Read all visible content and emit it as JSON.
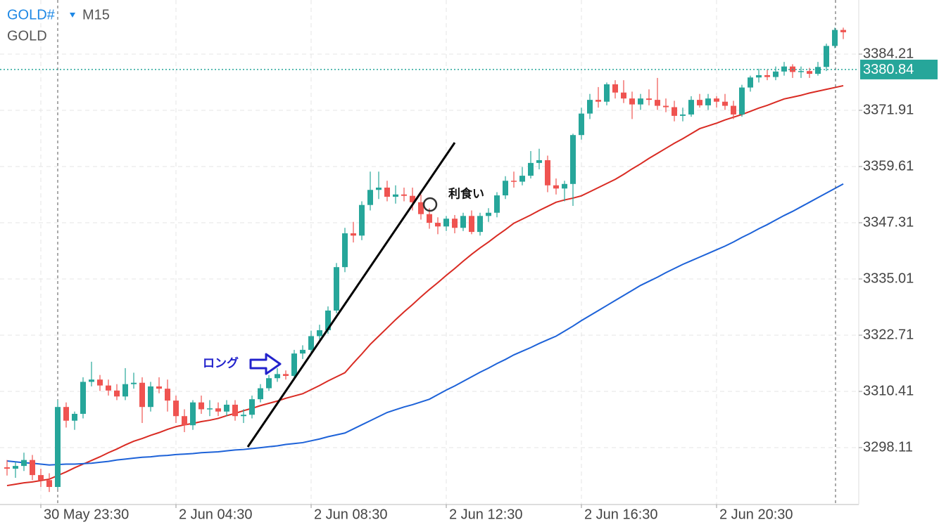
{
  "header": {
    "symbol": "GOLD#",
    "timeframe": "M15",
    "description": "GOLD"
  },
  "annotations": {
    "take_profit": "利食い",
    "long": "ロング"
  },
  "chart_data": {
    "type": "candlestick",
    "up_color": "#26a69a",
    "down_color": "#ef5350",
    "categories": [
      null,
      null,
      null,
      null,
      "30 May 23:30",
      null,
      null,
      null,
      null,
      null,
      null,
      null,
      null,
      null,
      null,
      null,
      null,
      null,
      null,
      null,
      "2 Jun 04:30",
      null,
      null,
      null,
      null,
      null,
      null,
      null,
      null,
      null,
      null,
      null,
      null,
      null,
      null,
      null,
      "2 Jun 08:30",
      null,
      null,
      null,
      null,
      null,
      null,
      null,
      null,
      null,
      null,
      null,
      null,
      null,
      null,
      null,
      "2 Jun 12:30",
      null,
      null,
      null,
      null,
      null,
      null,
      null,
      null,
      null,
      null,
      null,
      null,
      null,
      null,
      null,
      "2 Jun 16:30",
      null,
      null,
      null,
      null,
      null,
      null,
      null,
      null,
      null,
      null,
      null,
      null,
      null,
      null,
      null,
      "2 Jun 20:30",
      null,
      null,
      null,
      null,
      null,
      null,
      null,
      null,
      null,
      null,
      null,
      null,
      null,
      null,
      null
    ],
    "open": [
      3293.8,
      3293.5,
      3294.1,
      3295.4,
      3292.1,
      3291.0,
      3289.5,
      3307.0,
      3304.0,
      3305.5,
      3312.5,
      3313.0,
      3311.7,
      3310.6,
      3309.3,
      3312.0,
      3312.3,
      3307.0,
      3311.5,
      3311.0,
      3308.4,
      3305.0,
      3303.0,
      3308.0,
      3306.5,
      3306.7,
      3306.0,
      3307.5,
      3305.0,
      3305.3,
      3308.7,
      3311.1,
      3313.3,
      3314.2,
      3313.8,
      3318.7,
      3319.5,
      3322.5,
      3323.8,
      3328.1,
      3337.6,
      3345.0,
      3344.5,
      3351.2,
      3354.5,
      3355.0,
      3353.0,
      3353.5,
      3353.2,
      3351.8,
      3349.2,
      3347.3,
      3346.5,
      3348.2,
      3346.2,
      3348.8,
      3345.3,
      3348.8,
      3349.5,
      3353.3,
      3356.5,
      3356.3,
      3357.6,
      3360.4,
      3361.0,
      3355.5,
      3354.8,
      3355.8,
      3366.5,
      3371.2,
      3374.2,
      3373.8,
      3377.6,
      3375.8,
      3374.5,
      3373.2,
      3374.5,
      3374.2,
      3372.9,
      3372.6,
      3370.7,
      3371.0,
      3374.2,
      3373.0,
      3374.5,
      3373.8,
      3372.9,
      3371.0,
      3376.9,
      3379.1,
      3379.6,
      3379.2,
      3380.4,
      3381.5,
      3380.3,
      3380.5,
      3379.9,
      3381.4,
      3386.0,
      3389.5
    ],
    "high": [
      3295.4,
      3295.0,
      3297.0,
      3296.5,
      3293.5,
      3292.5,
      3308.5,
      3308.0,
      3306.0,
      3313.5,
      3316.9,
      3314.0,
      3313.0,
      3312.0,
      3315.5,
      3314.5,
      3313.5,
      3312.5,
      3313.5,
      3313.0,
      3309.5,
      3306.5,
      3308.5,
      3309.5,
      3308.5,
      3308.0,
      3308.5,
      3308.5,
      3306.5,
      3309.5,
      3312.0,
      3314.0,
      3315.5,
      3315.0,
      3319.5,
      3320.5,
      3323.7,
      3325.0,
      3329.0,
      3338.5,
      3346.2,
      3347.5,
      3352.0,
      3358.5,
      3358.5,
      3356.5,
      3355.5,
      3355.0,
      3355.0,
      3353.5,
      3350.5,
      3348.5,
      3348.8,
      3349.0,
      3349.5,
      3350.0,
      3349.5,
      3350.5,
      3354.0,
      3357.5,
      3358.5,
      3359.5,
      3363.0,
      3363.5,
      3362.0,
      3357.0,
      3356.5,
      3366.8,
      3372.5,
      3375.5,
      3377.0,
      3378.0,
      3378.5,
      3378.5,
      3376.0,
      3375.5,
      3376.5,
      3379.0,
      3374.5,
      3374.0,
      3372.5,
      3375.0,
      3375.5,
      3375.5,
      3375.0,
      3375.5,
      3374.0,
      3377.5,
      3379.5,
      3381.0,
      3380.8,
      3381.5,
      3382.5,
      3382.0,
      3381.5,
      3381.2,
      3382.5,
      3386.5,
      3390.0,
      3390.0
    ],
    "low": [
      3292.0,
      3291.5,
      3293.0,
      3291.0,
      3289.5,
      3288.4,
      3289.0,
      3302.5,
      3302.0,
      3304.5,
      3311.5,
      3310.5,
      3309.5,
      3308.5,
      3308.5,
      3311.0,
      3303.5,
      3306.0,
      3310.0,
      3306.0,
      3303.5,
      3301.5,
      3302.0,
      3305.5,
      3305.0,
      3305.0,
      3305.0,
      3304.0,
      3303.5,
      3304.5,
      3308.0,
      3310.5,
      3312.5,
      3313.0,
      3313.0,
      3317.5,
      3318.8,
      3321.8,
      3323.0,
      3327.5,
      3336.5,
      3343.0,
      3343.5,
      3350.0,
      3352.5,
      3352.0,
      3351.5,
      3352.0,
      3350.0,
      3348.0,
      3346.0,
      3344.8,
      3345.5,
      3345.0,
      3345.5,
      3344.8,
      3344.5,
      3347.5,
      3348.5,
      3352.5,
      3355.0,
      3355.5,
      3357.0,
      3359.0,
      3354.0,
      3353.5,
      3352.0,
      3351.0,
      3365.5,
      3370.0,
      3372.5,
      3373.0,
      3374.5,
      3373.5,
      3370.0,
      3372.0,
      3373.0,
      3372.0,
      3371.5,
      3369.5,
      3369.5,
      3370.5,
      3372.5,
      3372.0,
      3372.5,
      3372.0,
      3370.0,
      3370.5,
      3376.0,
      3378.0,
      3378.5,
      3378.5,
      3379.5,
      3379.0,
      3379.0,
      3379.0,
      3379.5,
      3380.5,
      3385.5,
      3387.5
    ],
    "close": [
      3293.5,
      3294.1,
      3295.4,
      3292.1,
      3291.0,
      3289.5,
      3307.0,
      3304.0,
      3305.5,
      3312.5,
      3313.0,
      3311.7,
      3310.6,
      3309.3,
      3312.0,
      3312.3,
      3307.0,
      3311.5,
      3311.0,
      3308.4,
      3305.0,
      3303.0,
      3308.0,
      3306.5,
      3306.7,
      3306.0,
      3307.5,
      3305.0,
      3305.3,
      3308.7,
      3311.1,
      3313.3,
      3314.2,
      3313.8,
      3318.7,
      3319.5,
      3322.5,
      3323.8,
      3328.1,
      3337.6,
      3345.0,
      3344.5,
      3351.2,
      3354.5,
      3355.0,
      3353.0,
      3353.5,
      3353.2,
      3351.8,
      3349.2,
      3347.3,
      3346.5,
      3348.2,
      3346.2,
      3348.8,
      3345.3,
      3348.8,
      3349.5,
      3353.3,
      3356.5,
      3356.3,
      3357.6,
      3360.4,
      3361.0,
      3355.5,
      3354.8,
      3355.8,
      3366.5,
      3371.2,
      3374.2,
      3373.8,
      3377.6,
      3375.8,
      3374.5,
      3373.2,
      3374.5,
      3374.2,
      3372.9,
      3372.6,
      3370.7,
      3371.0,
      3374.2,
      3373.0,
      3374.5,
      3373.8,
      3372.9,
      3371.0,
      3376.9,
      3379.1,
      3379.6,
      3379.2,
      3380.4,
      3381.5,
      3380.3,
      3380.5,
      3379.9,
      3381.4,
      3386.0,
      3389.5,
      3389.0
    ],
    "lines": [
      {
        "color": "#d92b23",
        "values": [
          3289.8,
          3290.1,
          3290.4,
          3290.6,
          3290.9,
          3291.2,
          3292.0,
          3292.8,
          3293.7,
          3294.5,
          3295.3,
          3296.1,
          3297.0,
          3297.8,
          3298.7,
          3299.5,
          3300.1,
          3300.8,
          3301.4,
          3302.1,
          3302.7,
          3303.1,
          3303.4,
          3303.8,
          3304.1,
          3304.5,
          3305.1,
          3305.6,
          3306.2,
          3306.7,
          3307.3,
          3307.8,
          3308.3,
          3308.9,
          3309.4,
          3309.9,
          3310.8,
          3311.7,
          3312.7,
          3313.6,
          3314.5,
          3316.6,
          3318.6,
          3320.7,
          3322.5,
          3324.3,
          3326.1,
          3327.8,
          3329.4,
          3331.1,
          3332.7,
          3334.2,
          3335.8,
          3337.3,
          3338.9,
          3340.4,
          3341.8,
          3343.1,
          3344.5,
          3345.8,
          3347.2,
          3348.1,
          3349.0,
          3350.0,
          3350.9,
          3351.8,
          3352.3,
          3352.7,
          3353.2,
          3354.1,
          3355.0,
          3355.9,
          3356.8,
          3357.9,
          3359.1,
          3360.2,
          3361.4,
          3362.5,
          3363.6,
          3364.7,
          3365.7,
          3366.8,
          3367.9,
          3368.5,
          3369.1,
          3369.8,
          3370.4,
          3371.0,
          3371.7,
          3372.4,
          3373.0,
          3373.7,
          3374.4,
          3374.8,
          3375.2,
          3375.7,
          3376.1,
          3376.5,
          3376.9,
          3377.3
        ]
      },
      {
        "color": "#1d62d8",
        "values": [
          3295.2,
          3295.0,
          3294.8,
          3294.7,
          3294.5,
          3294.3,
          3294.4,
          3294.5,
          3294.5,
          3294.6,
          3294.7,
          3294.9,
          3295.1,
          3295.4,
          3295.6,
          3295.8,
          3296.0,
          3296.1,
          3296.3,
          3296.4,
          3296.6,
          3296.7,
          3296.8,
          3297.0,
          3297.1,
          3297.2,
          3297.4,
          3297.6,
          3297.7,
          3297.9,
          3298.1,
          3298.3,
          3298.5,
          3298.8,
          3299.0,
          3299.2,
          3299.6,
          3300.0,
          3300.5,
          3300.9,
          3301.3,
          3302.2,
          3303.1,
          3304.0,
          3304.9,
          3305.8,
          3306.4,
          3307.0,
          3307.5,
          3308.1,
          3308.7,
          3309.7,
          3310.7,
          3311.6,
          3312.6,
          3313.6,
          3314.6,
          3315.5,
          3316.5,
          3317.4,
          3318.4,
          3319.2,
          3320.0,
          3320.9,
          3321.7,
          3322.5,
          3323.6,
          3324.7,
          3325.9,
          3327.0,
          3328.1,
          3329.2,
          3330.3,
          3331.4,
          3332.5,
          3333.6,
          3334.5,
          3335.4,
          3336.4,
          3337.3,
          3338.2,
          3339.0,
          3339.8,
          3340.6,
          3341.4,
          3342.2,
          3343.1,
          3344.1,
          3345.0,
          3346.0,
          3346.9,
          3347.9,
          3348.9,
          3349.8,
          3350.8,
          3351.8,
          3352.8,
          3353.8,
          3354.8,
          3355.8
        ]
      }
    ],
    "current_price": 3380.84,
    "current_color": "#26a69a",
    "ylim": [
      3285.66,
      3396.05
    ],
    "yticks": [
      3298.11,
      3310.41,
      3322.71,
      3335.01,
      3347.31,
      3359.61,
      3371.91,
      3384.21
    ],
    "grid": true
  }
}
